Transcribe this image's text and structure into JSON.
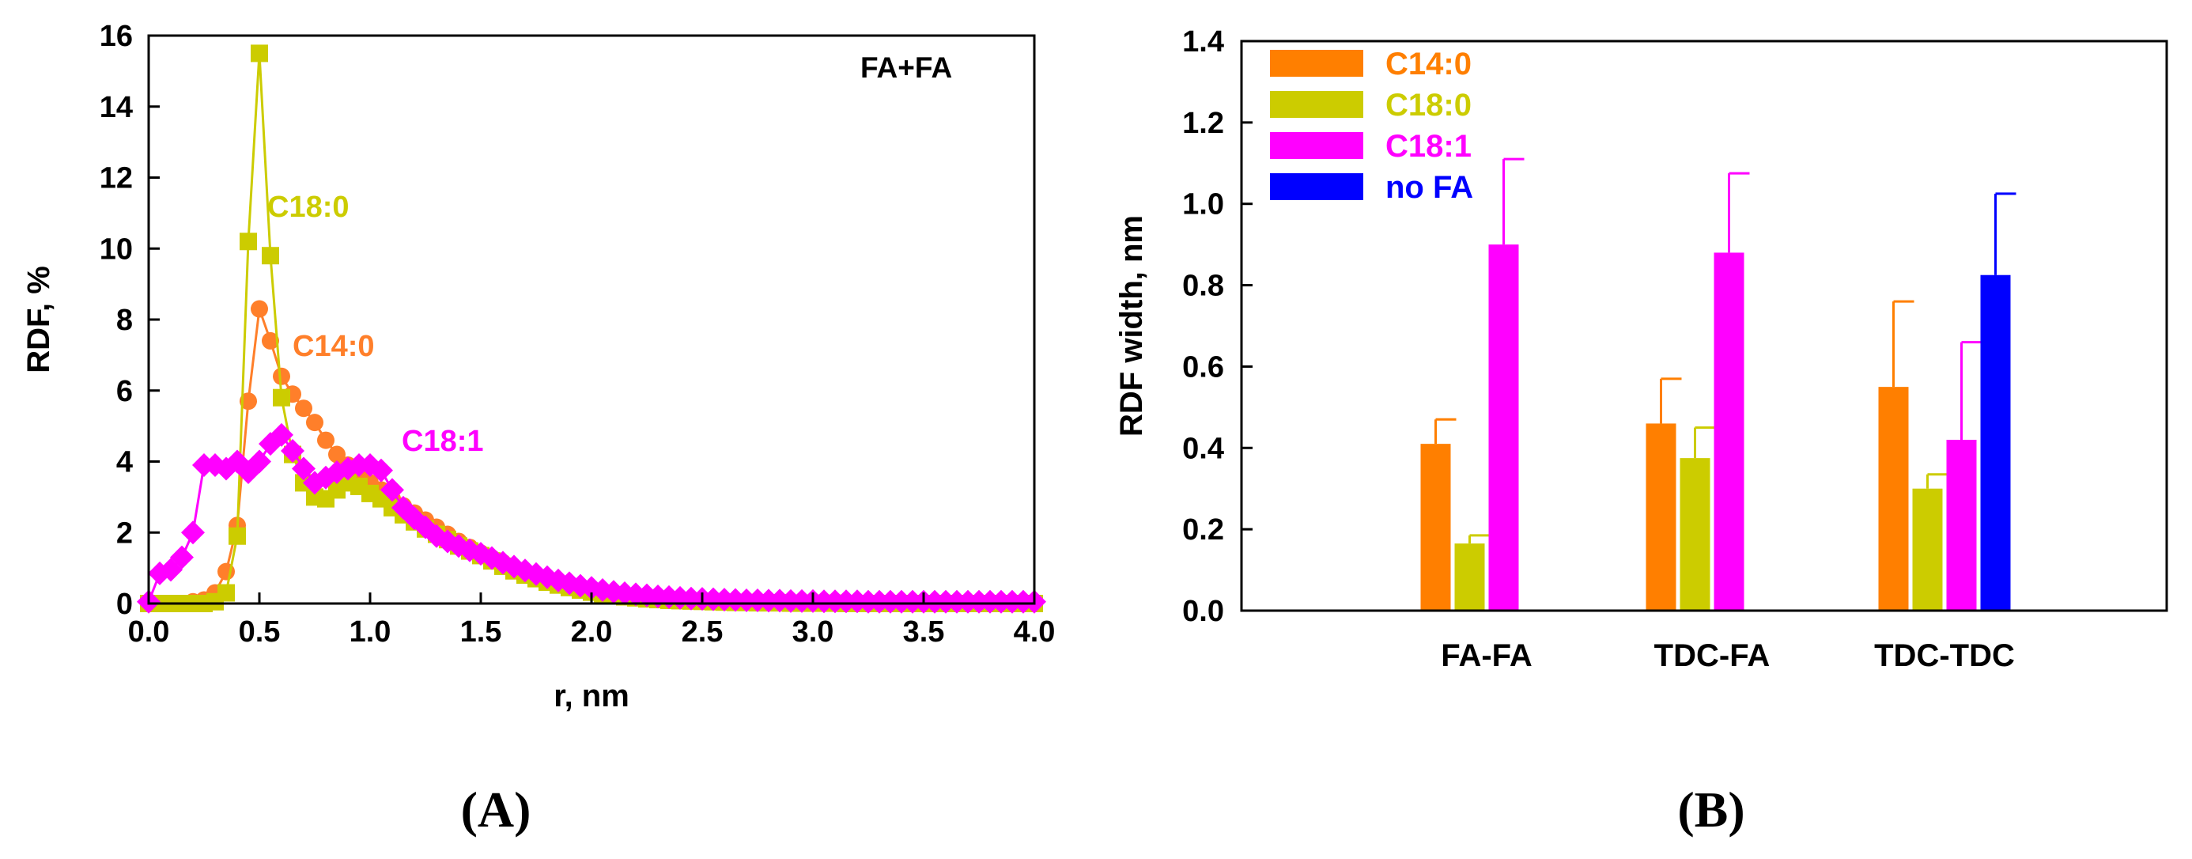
{
  "figure": {
    "panel_a_label": "(A)",
    "panel_b_label": "(B)"
  },
  "chart_data": [
    {
      "id": "A",
      "type": "line",
      "title": "FA+FA",
      "xlabel": "r, nm",
      "ylabel": "RDF, %",
      "xlim": [
        0,
        4
      ],
      "ylim": [
        0,
        16
      ],
      "xticks": [
        0.0,
        0.5,
        1.0,
        1.5,
        2.0,
        2.5,
        3.0,
        3.5,
        4.0
      ],
      "xtick_labels": [
        "0.0",
        "0.5",
        "1.0",
        "1.5",
        "2.0",
        "2.5",
        "3.0",
        "3.5",
        "4.0"
      ],
      "yticks": [
        0,
        2,
        4,
        6,
        8,
        10,
        12,
        14,
        16
      ],
      "ytick_labels": [
        "0",
        "2",
        "4",
        "6",
        "8",
        "10",
        "12",
        "14",
        "16"
      ],
      "grid": false,
      "x": [
        0.0,
        0.05,
        0.1,
        0.15,
        0.2,
        0.25,
        0.3,
        0.35,
        0.4,
        0.45,
        0.5,
        0.55,
        0.6,
        0.65,
        0.7,
        0.75,
        0.8,
        0.85,
        0.9,
        0.95,
        1.0,
        1.05,
        1.1,
        1.15,
        1.2,
        1.25,
        1.3,
        1.35,
        1.4,
        1.45,
        1.5,
        1.55,
        1.6,
        1.65,
        1.7,
        1.75,
        1.8,
        1.85,
        1.9,
        1.95,
        2.0,
        2.05,
        2.1,
        2.15,
        2.2,
        2.25,
        2.3,
        2.35,
        2.4,
        2.45,
        2.5,
        2.55,
        2.6,
        2.65,
        2.7,
        2.75,
        2.8,
        2.85,
        2.9,
        2.95,
        3.0,
        3.05,
        3.1,
        3.15,
        3.2,
        3.25,
        3.3,
        3.35,
        3.4,
        3.45,
        3.5,
        3.55,
        3.6,
        3.65,
        3.7,
        3.75,
        3.8,
        3.85,
        3.9,
        3.95,
        4.0
      ],
      "series": [
        {
          "name": "C14:0",
          "label": "C14:0",
          "color": "#ff7f2a",
          "marker": "circle",
          "values": [
            0,
            0,
            0,
            0,
            0.05,
            0.1,
            0.3,
            0.9,
            2.2,
            5.7,
            8.3,
            7.4,
            6.4,
            5.9,
            5.5,
            5.1,
            4.6,
            4.2,
            3.9,
            3.6,
            3.4,
            3.2,
            2.95,
            2.75,
            2.55,
            2.35,
            2.15,
            1.95,
            1.75,
            1.58,
            1.42,
            1.28,
            1.15,
            1.02,
            0.9,
            0.8,
            0.7,
            0.6,
            0.52,
            0.45,
            0.38,
            0.33,
            0.28,
            0.24,
            0.2,
            0.17,
            0.14,
            0.12,
            0.1,
            0.08,
            0.07,
            0.06,
            0.05,
            0.04,
            0.04,
            0.03,
            0.03,
            0.02,
            0.02,
            0.02,
            0.01,
            0.01,
            0.01,
            0.01,
            0.01,
            0.01,
            0.01,
            0,
            0,
            0,
            0,
            0,
            0,
            0,
            0,
            0,
            0,
            0,
            0,
            0,
            0
          ]
        },
        {
          "name": "C18:0",
          "label": "C18:0",
          "color": "#cccc00",
          "marker": "square",
          "values": [
            0,
            0,
            0,
            0,
            0,
            0,
            0.05,
            0.3,
            1.9,
            10.2,
            15.5,
            9.8,
            5.8,
            4.2,
            3.4,
            3.0,
            2.95,
            3.2,
            3.4,
            3.3,
            3.1,
            2.95,
            2.7,
            2.5,
            2.3,
            2.1,
            1.95,
            1.8,
            1.62,
            1.48,
            1.35,
            1.2,
            1.05,
            0.92,
            0.8,
            0.7,
            0.6,
            0.52,
            0.45,
            0.38,
            0.32,
            0.27,
            0.23,
            0.19,
            0.16,
            0.13,
            0.11,
            0.09,
            0.08,
            0.07,
            0.06,
            0.05,
            0.04,
            0.03,
            0.03,
            0.02,
            0.02,
            0.02,
            0.01,
            0.01,
            0.01,
            0.01,
            0.01,
            0,
            0,
            0,
            0,
            0,
            0,
            0,
            0,
            0,
            0,
            0,
            0,
            0,
            0,
            0,
            0,
            0,
            0
          ]
        },
        {
          "name": "C18:1",
          "label": "C18:1",
          "color": "#ff00ff",
          "marker": "diamond",
          "values": [
            0.05,
            0.85,
            0.95,
            1.3,
            2.0,
            3.9,
            3.9,
            3.8,
            4.0,
            3.7,
            4.0,
            4.5,
            4.75,
            4.3,
            3.8,
            3.4,
            3.55,
            3.7,
            3.8,
            3.9,
            3.9,
            3.75,
            3.2,
            2.7,
            2.4,
            2.15,
            1.9,
            1.75,
            1.62,
            1.5,
            1.4,
            1.28,
            1.15,
            1.04,
            0.93,
            0.83,
            0.74,
            0.65,
            0.57,
            0.5,
            0.44,
            0.38,
            0.33,
            0.29,
            0.26,
            0.23,
            0.2,
            0.18,
            0.16,
            0.14,
            0.13,
            0.12,
            0.11,
            0.1,
            0.09,
            0.09,
            0.08,
            0.08,
            0.07,
            0.07,
            0.07,
            0.06,
            0.06,
            0.06,
            0.06,
            0.05,
            0.05,
            0.05,
            0.05,
            0.05,
            0.05,
            0.05,
            0.05,
            0.05,
            0.05,
            0.05,
            0.05,
            0.05,
            0.05,
            0.05,
            0.05
          ]
        }
      ],
      "series_labels": [
        "C18:0",
        "C14:0",
        "C18:1"
      ]
    },
    {
      "id": "B",
      "type": "bar",
      "title": "",
      "xlabel": "",
      "ylabel": "RDF width, nm",
      "ylim": [
        0,
        1.4
      ],
      "yticks": [
        0.0,
        0.2,
        0.4,
        0.6,
        0.8,
        1.0,
        1.2,
        1.4
      ],
      "ytick_labels": [
        "0.0",
        "0.2",
        "0.4",
        "0.6",
        "0.8",
        "1.0",
        "1.2",
        "1.4"
      ],
      "categories": [
        "FA-FA",
        "TDC-FA",
        "TDC-TDC"
      ],
      "legend_position": "top-left",
      "series": [
        {
          "name": "C14:0",
          "color": "#ff7f00",
          "values": [
            0.41,
            0.46,
            0.55
          ],
          "errors": [
            0.06,
            0.11,
            0.21
          ]
        },
        {
          "name": "C18:0",
          "color": "#cccc00",
          "values": [
            0.165,
            0.375,
            0.3
          ],
          "errors": [
            0.02,
            0.075,
            0.035
          ]
        },
        {
          "name": "C18:1",
          "color": "#ff00ff",
          "values": [
            0.9,
            0.88,
            0.42
          ],
          "errors": [
            0.21,
            0.195,
            0.24
          ]
        },
        {
          "name": "no FA",
          "color": "#0000ff",
          "values": [
            null,
            null,
            0.825
          ],
          "errors": [
            null,
            null,
            0.2
          ]
        }
      ]
    }
  ]
}
